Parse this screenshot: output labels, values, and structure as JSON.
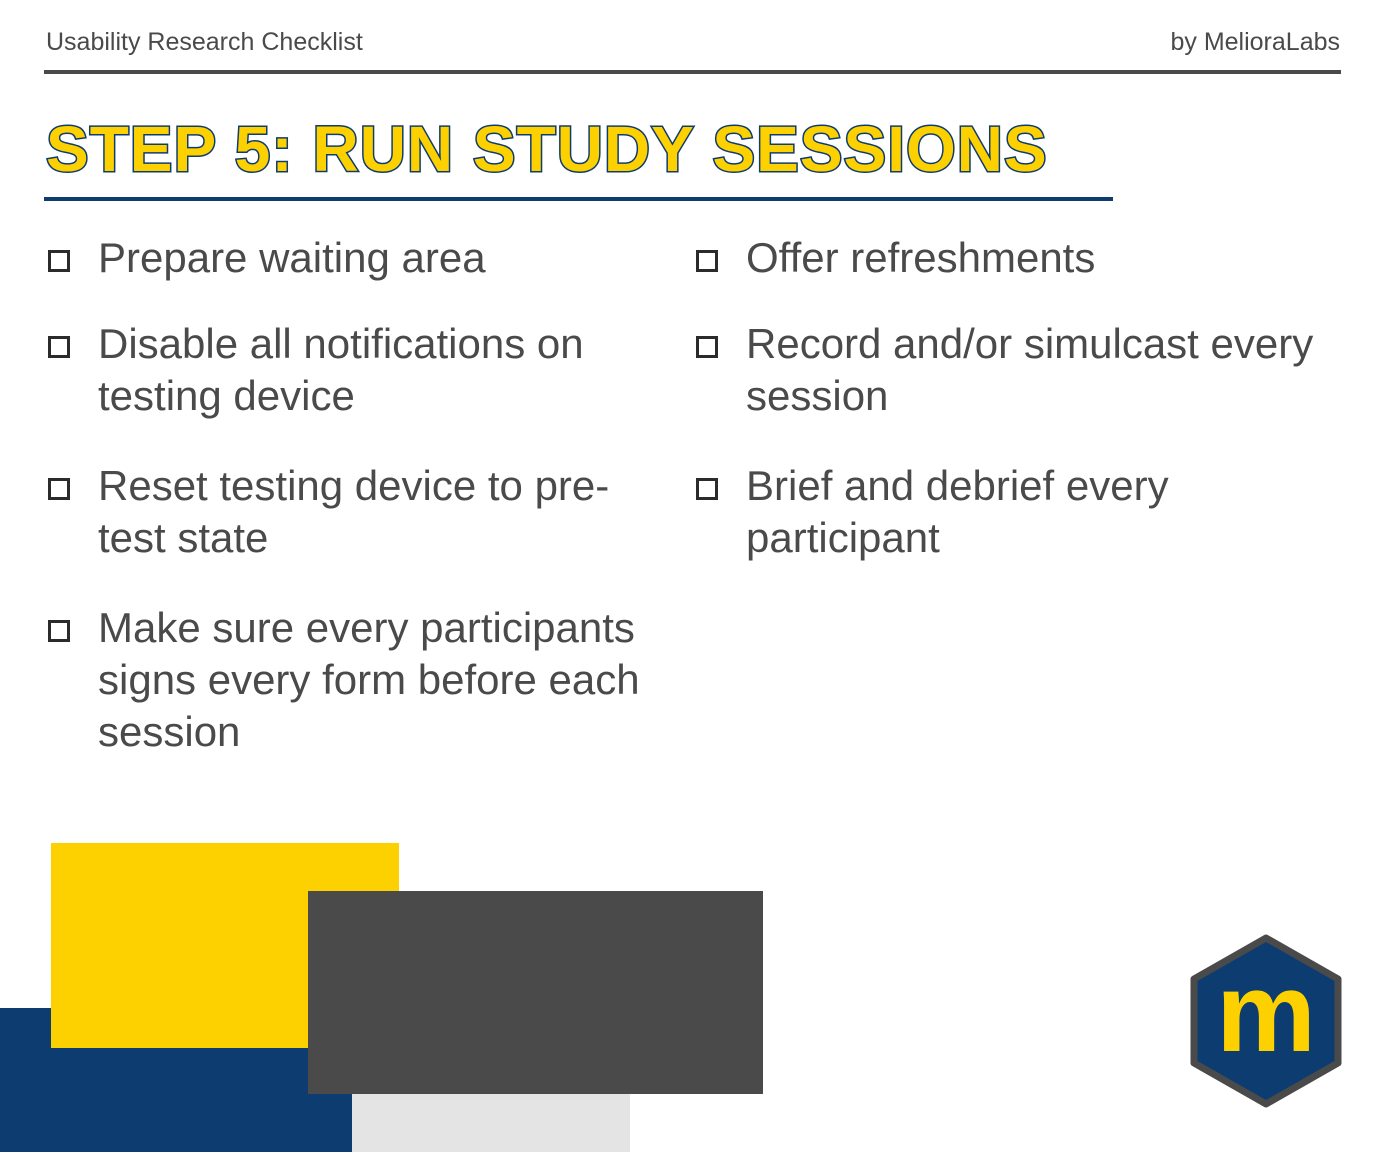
{
  "header": {
    "left_text": "Usability Research Checklist",
    "right_text": "by MelioraLabs"
  },
  "title": "STEP 5: RUN STUDY SESSIONS",
  "checklist": {
    "left": [
      {
        "text": "Prepare waiting area"
      },
      {
        "text": "Disable all notifications on testing device"
      },
      {
        "text": "Reset testing device to pre-test state"
      },
      {
        "text": "Make sure every participants signs every form before each session"
      }
    ],
    "right": [
      {
        "text": "Offer refreshments"
      },
      {
        "text": "Record and/or simulcast every session"
      },
      {
        "text": "Brief and debrief every participant"
      }
    ]
  },
  "logo": {
    "letter": "m"
  },
  "colors": {
    "brand_navy": "#0d3c71",
    "brand_yellow": "#fdd100",
    "dark_gray": "#4a4a4a",
    "light_gray": "#e4e4e4"
  }
}
